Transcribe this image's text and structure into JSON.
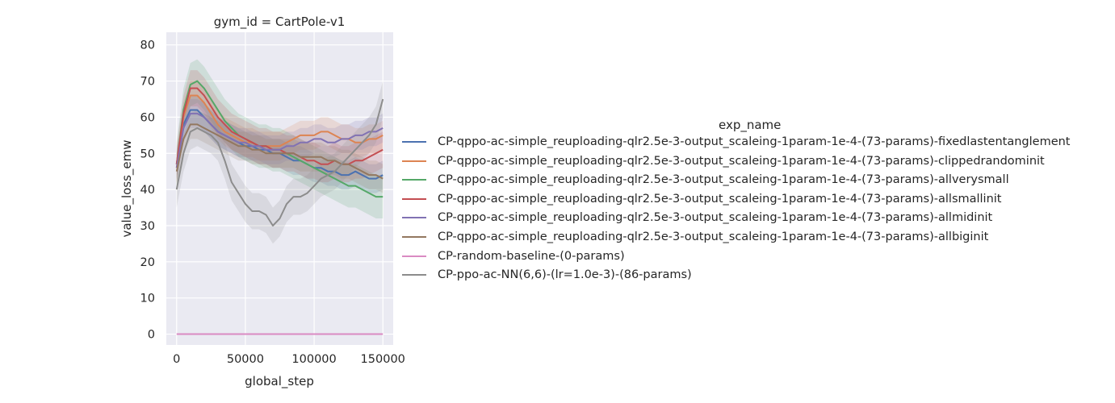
{
  "chart_data": {
    "type": "line",
    "title": "gym_id = CartPole-v1",
    "xlabel": "global_step",
    "ylabel": "value_loss_emw",
    "xlim": [
      -7500,
      157500
    ],
    "ylim": [
      -3,
      83.5
    ],
    "xticks": [
      0,
      50000,
      100000,
      150000
    ],
    "xtick_labels": [
      "0",
      "50000",
      "100000",
      "150000"
    ],
    "yticks": [
      0,
      10,
      20,
      30,
      40,
      50,
      60,
      70,
      80
    ],
    "ytick_labels": [
      "0",
      "10",
      "20",
      "30",
      "40",
      "50",
      "60",
      "70",
      "80"
    ],
    "grid": true,
    "legend_title": "exp_name",
    "legend_position": "right",
    "x": [
      0,
      5000,
      10000,
      15000,
      20000,
      25000,
      30000,
      35000,
      40000,
      45000,
      50000,
      55000,
      60000,
      65000,
      70000,
      75000,
      80000,
      85000,
      90000,
      95000,
      100000,
      105000,
      110000,
      115000,
      120000,
      125000,
      130000,
      135000,
      140000,
      145000,
      150000
    ],
    "series": [
      {
        "name": "CP-qppo-ac-simple_reuploading-qlr2.5e-3-output_scaleing-1param-1e-4-(73-params)-fixedlastentanglement",
        "color": "#4c72b0",
        "values": [
          47,
          58,
          62,
          62,
          60,
          58,
          56,
          55,
          54,
          53,
          52,
          52,
          51,
          51,
          50,
          50,
          49,
          48,
          48,
          47,
          46,
          46,
          45,
          45,
          44,
          44,
          45,
          44,
          43,
          43,
          44
        ],
        "band": 4
      },
      {
        "name": "CP-qppo-ac-simple_reuploading-qlr2.5e-3-output_scaleing-1param-1e-4-(73-params)-clippedrandominit",
        "color": "#dd8452",
        "values": [
          46,
          60,
          66,
          66,
          64,
          61,
          58,
          56,
          55,
          54,
          53,
          53,
          52,
          52,
          52,
          52,
          53,
          54,
          55,
          55,
          55,
          56,
          56,
          55,
          54,
          54,
          53,
          53,
          54,
          54,
          55
        ],
        "band": 4
      },
      {
        "name": "CP-qppo-ac-simple_reuploading-qlr2.5e-3-output_scaleing-1param-1e-4-(73-params)-allverysmall",
        "color": "#55a868",
        "values": [
          47,
          62,
          69,
          70,
          68,
          65,
          62,
          59,
          57,
          55,
          54,
          53,
          52,
          52,
          51,
          51,
          50,
          49,
          48,
          47,
          46,
          45,
          44,
          43,
          42,
          41,
          41,
          40,
          39,
          38,
          38
        ],
        "band": 6
      },
      {
        "name": "CP-qppo-ac-simple_reuploading-qlr2.5e-3-output_scaleing-1param-1e-4-(73-params)-allsmallinit",
        "color": "#c44e52",
        "values": [
          47,
          61,
          68,
          68,
          66,
          63,
          60,
          58,
          56,
          55,
          54,
          53,
          52,
          52,
          51,
          51,
          50,
          50,
          49,
          48,
          48,
          47,
          47,
          48,
          47,
          47,
          48,
          48,
          49,
          50,
          51
        ],
        "band": 5
      },
      {
        "name": "CP-qppo-ac-simple_reuploading-qlr2.5e-3-output_scaleing-1param-1e-4-(73-params)-allmidinit",
        "color": "#8172b3",
        "values": [
          46,
          57,
          61,
          61,
          60,
          58,
          56,
          55,
          54,
          53,
          53,
          52,
          52,
          51,
          51,
          51,
          52,
          52,
          53,
          53,
          54,
          54,
          53,
          53,
          54,
          54,
          55,
          55,
          56,
          56,
          57
        ],
        "band": 4
      },
      {
        "name": "CP-qppo-ac-simple_reuploading-qlr2.5e-3-output_scaleing-1param-1e-4-(73-params)-allbiginit",
        "color": "#937860",
        "values": [
          45,
          54,
          58,
          58,
          57,
          56,
          55,
          54,
          53,
          52,
          52,
          51,
          51,
          50,
          50,
          50,
          50,
          50,
          49,
          49,
          49,
          49,
          48,
          48,
          47,
          47,
          46,
          45,
          44,
          44,
          43
        ],
        "band": 4
      },
      {
        "name": "CP-random-baseline-(0-params)",
        "color": "#da8bc3",
        "values": [
          0,
          0,
          0,
          0,
          0,
          0,
          0,
          0,
          0,
          0,
          0,
          0,
          0,
          0,
          0,
          0,
          0,
          0,
          0,
          0,
          0,
          0,
          0,
          0,
          0,
          0,
          0,
          0,
          0,
          0,
          0
        ],
        "band": 0
      },
      {
        "name": "CP-ppo-ac-NN(6,6)-(lr=1.0e-3)-(86-params)",
        "color": "#8c8c8c",
        "values": [
          40,
          50,
          56,
          57,
          56,
          55,
          53,
          48,
          42,
          39,
          36,
          34,
          34,
          33,
          30,
          32,
          36,
          38,
          38,
          39,
          41,
          43,
          44,
          45,
          47,
          49,
          51,
          53,
          55,
          58,
          65
        ],
        "band": 5
      }
    ]
  }
}
